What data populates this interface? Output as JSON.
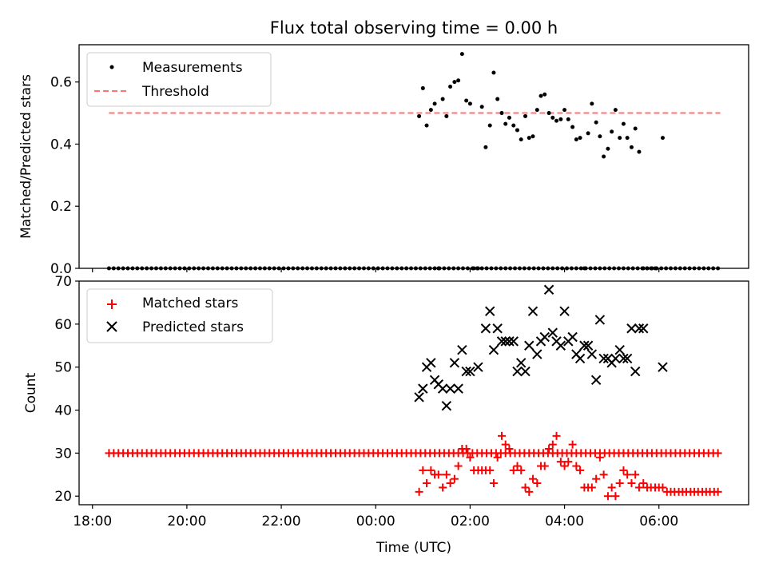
{
  "title": "Flux total observing time = 0.00 h",
  "chart_data": [
    {
      "type": "scatter",
      "ylabel": "Matched/Predicted stars",
      "ylim": [
        0.0,
        0.72
      ],
      "yticks": [
        0.0,
        0.2,
        0.4,
        0.6
      ],
      "ytick_labels": [
        "0.0",
        "0.2",
        "0.4",
        "0.6"
      ],
      "xlim": [
        -0.283,
        13.9
      ],
      "legend": {
        "position": "top-left",
        "entries": [
          "Measurements",
          "Threshold"
        ]
      },
      "threshold": {
        "name": "Threshold",
        "value": 0.5,
        "x_range": [
          0.35,
          13.3
        ],
        "color": "#ff7373",
        "style": "dashed"
      },
      "series": [
        {
          "name": "Measurements",
          "color": "#000000",
          "marker": "dot",
          "x": [
            0.35,
            0.45,
            0.55,
            0.65,
            0.75,
            0.85,
            0.95,
            1.05,
            1.15,
            1.25,
            1.35,
            1.45,
            1.55,
            1.65,
            1.75,
            1.85,
            1.95,
            2.05,
            2.15,
            2.25,
            2.35,
            2.45,
            2.55,
            2.65,
            2.75,
            2.85,
            2.95,
            3.05,
            3.15,
            3.25,
            3.35,
            3.45,
            3.55,
            3.65,
            3.75,
            3.85,
            3.95,
            4.05,
            4.15,
            4.25,
            4.35,
            4.45,
            4.55,
            4.65,
            4.75,
            4.85,
            4.95,
            5.05,
            5.15,
            5.25,
            5.35,
            5.45,
            5.55,
            5.65,
            5.75,
            5.85,
            5.95,
            6.05,
            6.15,
            6.25,
            6.35,
            6.45,
            6.55,
            6.65,
            6.75,
            6.85,
            6.95,
            7.05,
            7.15,
            7.25,
            7.35,
            7.45,
            7.55,
            7.65,
            7.75,
            7.85,
            7.95,
            8.05,
            8.15,
            8.25,
            8.35,
            8.45,
            8.55,
            8.65,
            8.75,
            8.85,
            8.95,
            9.05,
            9.15,
            9.25,
            9.35,
            9.45,
            9.55,
            9.65,
            9.75,
            9.85,
            9.95,
            10.05,
            10.15,
            10.25,
            10.35,
            10.45,
            10.55,
            10.65,
            10.75,
            10.85,
            10.95,
            11.05,
            11.15,
            11.25,
            11.35,
            11.45,
            11.55,
            11.65,
            11.75,
            11.85,
            11.95,
            12.05,
            12.15,
            12.25,
            12.35,
            12.45,
            12.55,
            12.65,
            12.75,
            12.85,
            12.95,
            13.05,
            13.15,
            13.25,
            6.92,
            7.0,
            7.08,
            7.17,
            7.25,
            7.33,
            7.42,
            7.5,
            7.58,
            7.67,
            7.75,
            7.83,
            7.92,
            8.0,
            8.08,
            8.17,
            8.25,
            8.33,
            8.42,
            8.5,
            8.58,
            8.67,
            8.75,
            8.83,
            8.92,
            9.0,
            9.08,
            9.17,
            9.25,
            9.33,
            9.42,
            9.5,
            9.58,
            9.67,
            9.75,
            9.83,
            9.92,
            10.0,
            10.08,
            10.17,
            10.25,
            10.33,
            10.42,
            10.5,
            10.58,
            10.67,
            10.75,
            10.83,
            10.92,
            11.0,
            11.08,
            11.17,
            11.25,
            11.33,
            11.42,
            11.5,
            11.58,
            11.67,
            11.75,
            11.83,
            11.92,
            12.08
          ],
          "y": [
            0,
            0,
            0,
            0,
            0,
            0,
            0,
            0,
            0,
            0,
            0,
            0,
            0,
            0,
            0,
            0,
            0,
            0,
            0,
            0,
            0,
            0,
            0,
            0,
            0,
            0,
            0,
            0,
            0,
            0,
            0,
            0,
            0,
            0,
            0,
            0,
            0,
            0,
            0,
            0,
            0,
            0,
            0,
            0,
            0,
            0,
            0,
            0,
            0,
            0,
            0,
            0,
            0,
            0,
            0,
            0,
            0,
            0,
            0,
            0,
            0,
            0,
            0,
            0,
            0,
            0,
            0,
            0,
            0,
            0,
            0,
            0,
            0,
            0,
            0,
            0,
            0,
            0,
            0,
            0,
            0,
            0,
            0,
            0,
            0,
            0,
            0,
            0,
            0,
            0,
            0,
            0,
            0,
            0,
            0,
            0,
            0,
            0,
            0,
            0,
            0,
            0,
            0,
            0,
            0,
            0,
            0,
            0,
            0,
            0,
            0,
            0,
            0,
            0,
            0,
            0,
            0,
            0,
            0,
            0,
            0,
            0,
            0,
            0,
            0,
            0,
            0,
            0,
            0,
            0,
            0.49,
            0.58,
            0.46,
            0.51,
            0.53,
            0.0,
            0.545,
            0.49,
            0.585,
            0.6,
            0.605,
            0.69,
            0.54,
            0.53,
            0.0,
            0.0,
            0.52,
            0.39,
            0.46,
            0.63,
            0.545,
            0.5,
            0.465,
            0.485,
            0.46,
            0.445,
            0.415,
            0.49,
            0.42,
            0.425,
            0.51,
            0.555,
            0.56,
            0.5,
            0.485,
            0.475,
            0.48,
            0.51,
            0.48,
            0.455,
            0.415,
            0.42,
            0.0,
            0.435,
            0.53,
            0.47,
            0.425,
            0.36,
            0.385,
            0.44,
            0.51,
            0.42,
            0.465,
            0.42,
            0.39,
            0.45,
            0.375,
            0.0,
            0.0,
            0.0,
            0.0,
            0.42
          ]
        }
      ]
    },
    {
      "type": "scatter",
      "ylabel": "Count",
      "ylim": [
        18,
        70
      ],
      "yticks": [
        20,
        30,
        40,
        50,
        60,
        70
      ],
      "ytick_labels": [
        "20",
        "30",
        "40",
        "50",
        "60",
        "70"
      ],
      "xlabel": "Time (UTC)",
      "xlim": [
        -0.283,
        13.9
      ],
      "xticks": [
        0,
        2,
        4,
        6,
        8,
        10,
        12
      ],
      "xtick_labels": [
        "18:00",
        "20:00",
        "22:00",
        "00:00",
        "02:00",
        "04:00",
        "06:00"
      ],
      "legend": {
        "position": "top-left",
        "entries": [
          "Matched stars",
          "Predicted stars"
        ]
      },
      "series": [
        {
          "name": "Matched stars",
          "color": "#ff0000",
          "marker": "plus",
          "x": [
            0.35,
            0.45,
            0.55,
            0.65,
            0.75,
            0.85,
            0.95,
            1.05,
            1.15,
            1.25,
            1.35,
            1.45,
            1.55,
            1.65,
            1.75,
            1.85,
            1.95,
            2.05,
            2.15,
            2.25,
            2.35,
            2.45,
            2.55,
            2.65,
            2.75,
            2.85,
            2.95,
            3.05,
            3.15,
            3.25,
            3.35,
            3.45,
            3.55,
            3.65,
            3.75,
            3.85,
            3.95,
            4.05,
            4.15,
            4.25,
            4.35,
            4.45,
            4.55,
            4.65,
            4.75,
            4.85,
            4.95,
            5.05,
            5.15,
            5.25,
            5.35,
            5.45,
            5.55,
            5.65,
            5.75,
            5.85,
            5.95,
            6.05,
            6.15,
            6.25,
            6.35,
            6.45,
            6.55,
            6.65,
            6.75,
            6.85,
            6.95,
            7.05,
            7.15,
            7.25,
            7.35,
            7.45,
            7.55,
            7.65,
            7.75,
            7.85,
            7.95,
            8.05,
            8.15,
            8.25,
            8.35,
            8.45,
            8.55,
            8.65,
            8.75,
            8.85,
            8.95,
            9.05,
            9.15,
            9.25,
            9.35,
            9.45,
            9.55,
            9.65,
            9.75,
            9.85,
            9.95,
            10.05,
            10.15,
            10.25,
            10.35,
            10.45,
            10.55,
            10.65,
            10.75,
            10.85,
            10.95,
            11.05,
            11.15,
            11.25,
            11.35,
            11.45,
            11.55,
            11.65,
            11.75,
            11.85,
            11.95,
            12.05,
            12.15,
            12.25,
            12.35,
            12.45,
            12.55,
            12.65,
            12.75,
            12.85,
            12.95,
            13.05,
            13.15,
            13.25,
            6.92,
            7.0,
            7.08,
            7.17,
            7.25,
            7.33,
            7.42,
            7.5,
            7.58,
            7.67,
            7.75,
            7.83,
            7.92,
            8.0,
            8.08,
            8.17,
            8.25,
            8.33,
            8.42,
            8.5,
            8.58,
            8.67,
            8.75,
            8.83,
            8.92,
            9.0,
            9.08,
            9.17,
            9.25,
            9.33,
            9.42,
            9.5,
            9.58,
            9.67,
            9.75,
            9.83,
            9.92,
            10.0,
            10.08,
            10.17,
            10.25,
            10.33,
            10.42,
            10.5,
            10.58,
            10.67,
            10.75,
            10.83,
            10.92,
            11.0,
            11.08,
            11.17,
            11.25,
            11.33,
            11.42,
            11.5,
            11.58,
            11.67,
            11.75,
            11.83,
            11.92,
            12.0,
            12.08,
            12.17,
            12.25,
            12.33,
            12.42,
            12.5,
            12.58,
            12.67,
            12.75,
            12.83,
            12.92,
            13.0,
            13.08,
            13.17,
            13.25
          ],
          "y": [
            30,
            30,
            30,
            30,
            30,
            30,
            30,
            30,
            30,
            30,
            30,
            30,
            30,
            30,
            30,
            30,
            30,
            30,
            30,
            30,
            30,
            30,
            30,
            30,
            30,
            30,
            30,
            30,
            30,
            30,
            30,
            30,
            30,
            30,
            30,
            30,
            30,
            30,
            30,
            30,
            30,
            30,
            30,
            30,
            30,
            30,
            30,
            30,
            30,
            30,
            30,
            30,
            30,
            30,
            30,
            30,
            30,
            30,
            30,
            30,
            30,
            30,
            30,
            30,
            30,
            30,
            30,
            30,
            30,
            30,
            30,
            30,
            30,
            30,
            30,
            30,
            30,
            30,
            30,
            30,
            30,
            30,
            30,
            30,
            30,
            30,
            30,
            30,
            30,
            30,
            30,
            30,
            30,
            30,
            30,
            30,
            30,
            30,
            30,
            30,
            30,
            30,
            30,
            30,
            30,
            30,
            30,
            30,
            30,
            30,
            30,
            30,
            30,
            30,
            30,
            30,
            30,
            30,
            30,
            30,
            30,
            30,
            30,
            30,
            30,
            30,
            30,
            30,
            30,
            30,
            21,
            26,
            23,
            26,
            25,
            25,
            22,
            25,
            23,
            24,
            27,
            31,
            31,
            29,
            26,
            26,
            26,
            26,
            26,
            23,
            29,
            34,
            32,
            31,
            26,
            27,
            26,
            22,
            21,
            24,
            23,
            27,
            27,
            31,
            32,
            34,
            28,
            27,
            28,
            32,
            27,
            26,
            22,
            22,
            22,
            24,
            29,
            25,
            20,
            22,
            20,
            23,
            26,
            25,
            23,
            25,
            22,
            23,
            22,
            22,
            22,
            22,
            22,
            21,
            21,
            21,
            21,
            21,
            21,
            21,
            21,
            21,
            21,
            21,
            21,
            21,
            21
          ]
        },
        {
          "name": "Predicted stars",
          "color": "#000000",
          "marker": "x",
          "x": [
            6.92,
            7.0,
            7.08,
            7.17,
            7.25,
            7.33,
            7.42,
            7.5,
            7.58,
            7.67,
            7.75,
            7.83,
            7.92,
            8.0,
            8.17,
            8.33,
            8.42,
            8.5,
            8.58,
            8.67,
            8.75,
            8.83,
            8.92,
            9.0,
            9.08,
            9.17,
            9.25,
            9.33,
            9.42,
            9.5,
            9.58,
            9.67,
            9.75,
            9.83,
            9.92,
            10.0,
            10.08,
            10.17,
            10.25,
            10.33,
            10.42,
            10.5,
            10.58,
            10.67,
            10.75,
            10.83,
            10.92,
            11.0,
            11.08,
            11.17,
            11.25,
            11.33,
            11.42,
            11.5,
            11.58,
            11.67,
            12.08
          ],
          "y": [
            43,
            45,
            50,
            51,
            47,
            46,
            45,
            41,
            45,
            51,
            45,
            54,
            49,
            49,
            50,
            59,
            63,
            54,
            59,
            56,
            56,
            56,
            56,
            49,
            51,
            49,
            55,
            63,
            53,
            56,
            57,
            68,
            58,
            56,
            55,
            63,
            56,
            57,
            53,
            52,
            55,
            55,
            53,
            47,
            61,
            52,
            52,
            51,
            52,
            54,
            52,
            52,
            59,
            49,
            59,
            59,
            50
          ]
        }
      ]
    }
  ]
}
